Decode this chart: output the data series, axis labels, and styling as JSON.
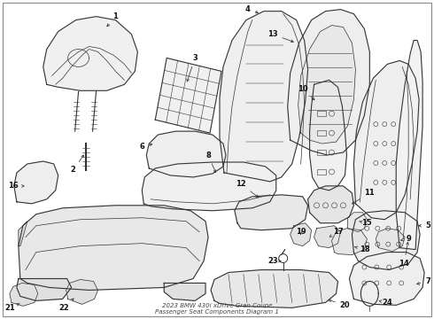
{
  "title": "2023 BMW 430i xDrive Gran Coupe\nPassenger Seat Components Diagram 1",
  "background_color": "#ffffff",
  "line_color": "#333333",
  "label_color": "#111111",
  "border_color": "#888888"
}
